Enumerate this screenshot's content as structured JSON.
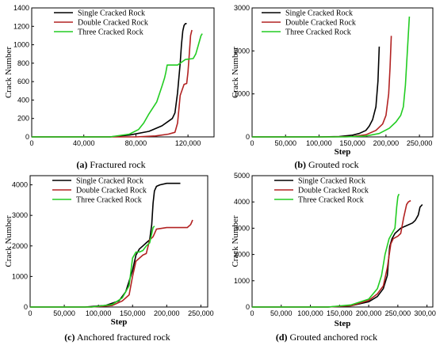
{
  "chart_data": [
    {
      "type": "line",
      "caption_bold": "(a)",
      "caption_text": " Fractured rock",
      "xlabel": "",
      "ylabel": "Crack Number",
      "xlim": [
        0,
        140000
      ],
      "ylim": [
        0,
        1400
      ],
      "xticks": [
        0,
        40000,
        80000,
        120000
      ],
      "xtick_labels": [
        "0",
        "40,000",
        "80,000",
        "120,000"
      ],
      "yticks": [
        0,
        200,
        400,
        600,
        800,
        1000,
        1200,
        1400
      ],
      "ytick_labels": [
        "0",
        "200",
        "400",
        "600",
        "800",
        "1000",
        "1200",
        "1400"
      ],
      "legend_position": "top-left",
      "series": [
        {
          "name": "Single Cracked Rock",
          "color": "#000000",
          "x": [
            0,
            60000,
            75000,
            90000,
            100000,
            105000,
            108000,
            110000,
            112000,
            114000,
            115000,
            116000,
            117000,
            118000,
            119000
          ],
          "y": [
            0,
            0,
            20,
            60,
            120,
            170,
            200,
            260,
            480,
            800,
            1000,
            1150,
            1210,
            1230,
            1230
          ]
        },
        {
          "name": "Double Cracked Rock",
          "color": "#b22222",
          "x": [
            0,
            80000,
            95000,
            105000,
            110000,
            112000,
            114000,
            117000,
            119000,
            120000,
            121000,
            122000,
            123000
          ],
          "y": [
            0,
            0,
            10,
            30,
            50,
            150,
            450,
            570,
            580,
            700,
            900,
            1100,
            1160
          ]
        },
        {
          "name": "Three Cracked Rock",
          "color": "#22cc22",
          "x": [
            0,
            60000,
            75000,
            82000,
            86000,
            90000,
            96000,
            100000,
            102000,
            103000,
            104000,
            110000,
            112000,
            114000,
            116000,
            118000,
            124000,
            126000,
            128000,
            130000,
            131000
          ],
          "y": [
            0,
            0,
            30,
            80,
            150,
            250,
            380,
            550,
            640,
            700,
            780,
            780,
            780,
            800,
            820,
            840,
            850,
            900,
            1000,
            1100,
            1120
          ]
        }
      ]
    },
    {
      "type": "line",
      "caption_bold": "(b)",
      "caption_text": " Grouted rock",
      "xlabel": "Step",
      "ylabel": "Crack Number",
      "xlim": [
        0,
        270000
      ],
      "ylim": [
        0,
        3000
      ],
      "xticks": [
        0,
        50000,
        100000,
        150000,
        200000,
        250000
      ],
      "xtick_labels": [
        "0",
        "50,000",
        "100,000",
        "150,000",
        "200,000",
        "250,000"
      ],
      "yticks": [
        0,
        1000,
        2000,
        3000
      ],
      "ytick_labels": [
        "0",
        "1000",
        "2000",
        "3000"
      ],
      "legend_position": "top-right",
      "series": [
        {
          "name": "Single Cracked Rock",
          "color": "#000000",
          "x": [
            0,
            100000,
            130000,
            150000,
            160000,
            170000,
            175000,
            180000,
            185000,
            188000,
            190000
          ],
          "y": [
            0,
            0,
            10,
            40,
            80,
            150,
            250,
            400,
            700,
            1300,
            2100
          ]
        },
        {
          "name": "Double Cracked Rock",
          "color": "#b22222",
          "x": [
            0,
            120000,
            150000,
            170000,
            185000,
            195000,
            200000,
            204000,
            206000,
            208000
          ],
          "y": [
            0,
            0,
            10,
            50,
            150,
            300,
            500,
            1000,
            1600,
            2350
          ]
        },
        {
          "name": "Three Cracked Rock",
          "color": "#22cc22",
          "x": [
            0,
            140000,
            170000,
            190000,
            205000,
            215000,
            222000,
            226000,
            229000,
            232000,
            235000
          ],
          "y": [
            0,
            0,
            20,
            80,
            200,
            350,
            500,
            700,
            1200,
            2000,
            2800
          ]
        }
      ]
    },
    {
      "type": "line",
      "caption_bold": "(c)",
      "caption_text": " Anchored fractured rock",
      "xlabel": "Step",
      "ylabel": "Crack Number",
      "xlim": [
        0,
        260000
      ],
      "ylim": [
        0,
        4300
      ],
      "xticks": [
        0,
        50000,
        100000,
        150000,
        200000,
        250000
      ],
      "xtick_labels": [
        "0",
        "50,000",
        "100,000",
        "150,000",
        "200,000",
        "250,000"
      ],
      "yticks": [
        0,
        1000,
        2000,
        3000,
        4000
      ],
      "ytick_labels": [
        "0",
        "1000",
        "2000",
        "3000",
        "4000"
      ],
      "legend_position": "top-left",
      "series": [
        {
          "name": "Single Cracked Rock",
          "color": "#000000",
          "x": [
            0,
            80000,
            110000,
            130000,
            140000,
            150000,
            155000,
            160000,
            165000,
            170000,
            175000,
            178000,
            180000,
            182000,
            185000,
            190000,
            200000,
            220000
          ],
          "y": [
            0,
            0,
            50,
            200,
            500,
            1200,
            1700,
            1900,
            2000,
            2100,
            2200,
            2700,
            3400,
            3800,
            3950,
            4000,
            4050,
            4050
          ]
        },
        {
          "name": "Double Cracked Rock",
          "color": "#b22222",
          "x": [
            0,
            90000,
            120000,
            135000,
            145000,
            150000,
            155000,
            165000,
            170000,
            175000,
            180000,
            185000,
            200000,
            220000,
            230000,
            235000,
            238000
          ],
          "y": [
            0,
            0,
            50,
            200,
            400,
            1000,
            1500,
            1700,
            1750,
            2200,
            2300,
            2550,
            2600,
            2600,
            2600,
            2700,
            2850
          ]
        },
        {
          "name": "Three Cracked Rock",
          "color": "#22cc22",
          "x": [
            0,
            90000,
            120000,
            135000,
            145000,
            150000,
            155000,
            160000,
            165000,
            170000,
            175000,
            180000,
            182000
          ],
          "y": [
            0,
            0,
            80,
            300,
            700,
            1600,
            1800,
            1800,
            1850,
            2000,
            2100,
            2600,
            2650
          ]
        }
      ]
    },
    {
      "type": "line",
      "caption_bold": "(d)",
      "caption_text": " Grouted anchored rock",
      "xlabel": "Step",
      "ylabel": "Crack Number",
      "xlim": [
        0,
        310000
      ],
      "ylim": [
        0,
        5000
      ],
      "xticks": [
        0,
        50000,
        100000,
        150000,
        200000,
        250000,
        300000
      ],
      "xtick_labels": [
        "0",
        "50,000",
        "100,000",
        "150,000",
        "200,000",
        "250,000",
        "300,000"
      ],
      "yticks": [
        0,
        1000,
        2000,
        3000,
        4000,
        5000
      ],
      "ytick_labels": [
        "0",
        "1000",
        "2000",
        "3000",
        "4000",
        "5000"
      ],
      "legend_position": "top-left",
      "series": [
        {
          "name": "Single Cracked Rock",
          "color": "#000000",
          "x": [
            0,
            130000,
            170000,
            200000,
            215000,
            225000,
            232000,
            236000,
            240000,
            245000,
            255000,
            265000,
            275000,
            280000,
            285000,
            288000,
            292000
          ],
          "y": [
            0,
            0,
            50,
            200,
            400,
            700,
            1200,
            2300,
            2600,
            2800,
            3000,
            3100,
            3200,
            3300,
            3500,
            3800,
            3900
          ]
        },
        {
          "name": "Double Cracked Rock",
          "color": "#b22222",
          "x": [
            0,
            130000,
            170000,
            200000,
            215000,
            225000,
            232000,
            238000,
            242000,
            250000,
            255000,
            260000,
            265000,
            268000,
            272000
          ],
          "y": [
            0,
            0,
            50,
            250,
            500,
            800,
            1500,
            2400,
            2600,
            2700,
            2800,
            3400,
            3900,
            4000,
            4050
          ]
        },
        {
          "name": "Three Cracked Rock",
          "color": "#22cc22",
          "x": [
            0,
            130000,
            170000,
            200000,
            215000,
            222000,
            228000,
            235000,
            240000,
            245000,
            248000,
            250000,
            252000
          ],
          "y": [
            0,
            0,
            80,
            300,
            700,
            1200,
            2000,
            2600,
            2800,
            3000,
            3800,
            4200,
            4300
          ]
        }
      ]
    }
  ]
}
